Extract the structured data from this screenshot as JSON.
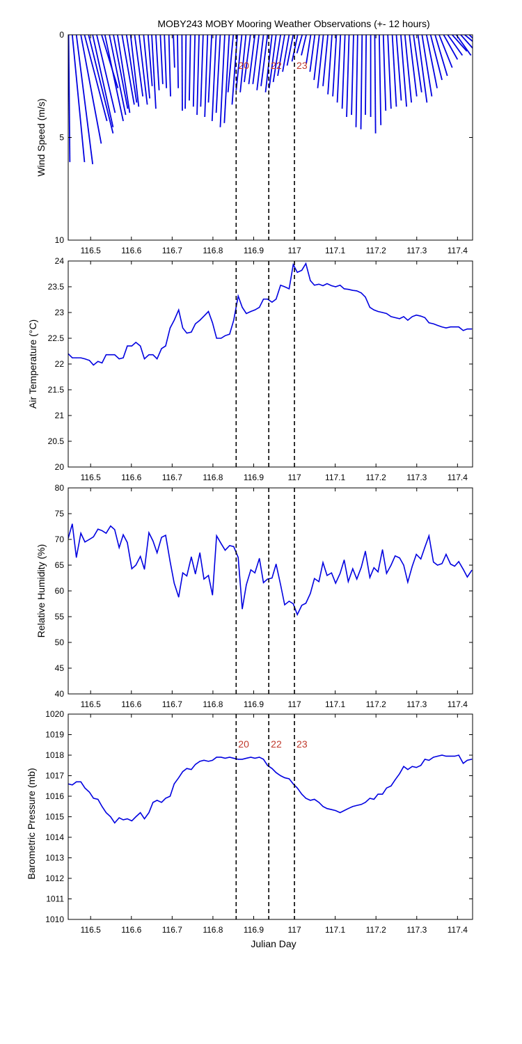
{
  "title": "MOBY243 MOBY Mooring Weather Observations (+- 12 hours)",
  "xlabel": "Julian Day",
  "line_color": "#0000e0",
  "marker_color": "#c0392b",
  "x_ticks": [
    "116.5",
    "116.6",
    "116.7",
    "116.8",
    "116.9",
    "117",
    "117.1",
    "117.2",
    "117.3",
    "117.4"
  ],
  "markers": [
    {
      "x": 116.857,
      "label": "20"
    },
    {
      "x": 116.937,
      "label": "22"
    },
    {
      "x": 117.0,
      "label": "23"
    }
  ],
  "chart_data": [
    {
      "type": "quiver",
      "ylabel": "Wind Speed (m/s)",
      "xlim": [
        116.445,
        117.437
      ],
      "ylim": [
        10,
        0
      ],
      "y_ticks": [
        "0",
        "5",
        "10"
      ],
      "show_marker_labels": true,
      "vectors": [
        {
          "x": 116.446,
          "u": 0.003,
          "speed": 6.2
        },
        {
          "x": 116.455,
          "u": 0.03,
          "speed": 6.2
        },
        {
          "x": 116.465,
          "u": 0.04,
          "speed": 6.3
        },
        {
          "x": 116.476,
          "u": 0.05,
          "speed": 5.3
        },
        {
          "x": 116.485,
          "u": 0.055,
          "speed": 4.2
        },
        {
          "x": 116.495,
          "u": 0.06,
          "speed": 4.8
        },
        {
          "x": 116.505,
          "u": 0.05,
          "speed": 4.5
        },
        {
          "x": 116.515,
          "u": 0.045,
          "speed": 3.8
        },
        {
          "x": 116.527,
          "u": 0.04,
          "speed": 2.6
        },
        {
          "x": 116.535,
          "u": 0.045,
          "speed": 4.2
        },
        {
          "x": 116.546,
          "u": 0.04,
          "speed": 3.9
        },
        {
          "x": 116.556,
          "u": 0.035,
          "speed": 3.6
        },
        {
          "x": 116.566,
          "u": 0.03,
          "speed": 3.8
        },
        {
          "x": 116.577,
          "u": 0.03,
          "speed": 3.4
        },
        {
          "x": 116.588,
          "u": 0.025,
          "speed": 3.3
        },
        {
          "x": 116.598,
          "u": 0.02,
          "speed": 3.5
        },
        {
          "x": 116.608,
          "u": 0.02,
          "speed": 3.0
        },
        {
          "x": 116.619,
          "u": 0.02,
          "speed": 3.4
        },
        {
          "x": 116.63,
          "u": 0.015,
          "speed": 3.1
        },
        {
          "x": 116.641,
          "u": 0.01,
          "speed": 2.5
        },
        {
          "x": 116.65,
          "u": 0.01,
          "speed": 3.6
        },
        {
          "x": 116.66,
          "u": 0.008,
          "speed": 2.7
        },
        {
          "x": 116.671,
          "u": 0.006,
          "speed": 2.4
        },
        {
          "x": 116.681,
          "u": 0.005,
          "speed": 2.6
        },
        {
          "x": 116.692,
          "u": 0.004,
          "speed": 3.0
        },
        {
          "x": 116.703,
          "u": 0.003,
          "speed": 1.6
        },
        {
          "x": 116.713,
          "u": 0.002,
          "speed": 2.6
        },
        {
          "x": 116.724,
          "u": 0.001,
          "speed": 3.7
        },
        {
          "x": 116.734,
          "u": -0.002,
          "speed": 3.6
        },
        {
          "x": 116.745,
          "u": -0.003,
          "speed": 3.2
        },
        {
          "x": 116.756,
          "u": -0.004,
          "speed": 3.5
        },
        {
          "x": 116.766,
          "u": -0.005,
          "speed": 3.9
        },
        {
          "x": 116.776,
          "u": -0.006,
          "speed": 3.5
        },
        {
          "x": 116.787,
          "u": -0.007,
          "speed": 4.0
        },
        {
          "x": 116.797,
          "u": -0.008,
          "speed": 3.3
        },
        {
          "x": 116.808,
          "u": -0.01,
          "speed": 4.2
        },
        {
          "x": 116.818,
          "u": -0.01,
          "speed": 3.8
        },
        {
          "x": 116.829,
          "u": -0.011,
          "speed": 4.5
        },
        {
          "x": 116.84,
          "u": -0.012,
          "speed": 4.3
        },
        {
          "x": 116.85,
          "u": -0.013,
          "speed": 2.8
        },
        {
          "x": 116.86,
          "u": -0.013,
          "speed": 3.4
        },
        {
          "x": 116.871,
          "u": -0.014,
          "speed": 2.7
        },
        {
          "x": 116.881,
          "u": -0.014,
          "speed": 2.8
        },
        {
          "x": 116.892,
          "u": -0.015,
          "speed": 2.3
        },
        {
          "x": 116.903,
          "u": -0.015,
          "speed": 2.4
        },
        {
          "x": 116.913,
          "u": -0.015,
          "speed": 2.4
        },
        {
          "x": 116.924,
          "u": -0.016,
          "speed": 2.7
        },
        {
          "x": 116.934,
          "u": -0.016,
          "speed": 2.5
        },
        {
          "x": 116.945,
          "u": -0.016,
          "speed": 2.8
        },
        {
          "x": 116.955,
          "u": -0.017,
          "speed": 2.6
        },
        {
          "x": 116.966,
          "u": -0.018,
          "speed": 2.3
        },
        {
          "x": 116.976,
          "u": -0.017,
          "speed": 2.0
        },
        {
          "x": 116.987,
          "u": -0.016,
          "speed": 1.8
        },
        {
          "x": 116.997,
          "u": -0.015,
          "speed": 1.5
        },
        {
          "x": 117.008,
          "u": -0.014,
          "speed": 1.3
        },
        {
          "x": 117.019,
          "u": -0.013,
          "speed": 0.9
        },
        {
          "x": 117.029,
          "u": -0.012,
          "speed": 1.0
        },
        {
          "x": 117.04,
          "u": -0.011,
          "speed": 1.4
        },
        {
          "x": 117.05,
          "u": -0.012,
          "speed": 1.8
        },
        {
          "x": 117.061,
          "u": -0.013,
          "speed": 2.2
        },
        {
          "x": 117.071,
          "u": -0.014,
          "speed": 2.6
        },
        {
          "x": 117.082,
          "u": -0.012,
          "speed": 2.5
        },
        {
          "x": 117.092,
          "u": -0.01,
          "speed": 2.9
        },
        {
          "x": 117.103,
          "u": -0.009,
          "speed": 3.0
        },
        {
          "x": 117.113,
          "u": -0.008,
          "speed": 3.3
        },
        {
          "x": 117.124,
          "u": -0.007,
          "speed": 3.6
        },
        {
          "x": 117.134,
          "u": -0.006,
          "speed": 4.0
        },
        {
          "x": 117.145,
          "u": -0.005,
          "speed": 3.9
        },
        {
          "x": 117.155,
          "u": -0.004,
          "speed": 4.5
        },
        {
          "x": 117.166,
          "u": -0.003,
          "speed": 4.6
        },
        {
          "x": 117.176,
          "u": -0.002,
          "speed": 3.9
        },
        {
          "x": 117.187,
          "u": 0.0,
          "speed": 4.0
        },
        {
          "x": 117.197,
          "u": 0.002,
          "speed": 4.8
        },
        {
          "x": 117.208,
          "u": 0.004,
          "speed": 4.4
        },
        {
          "x": 117.218,
          "u": 0.006,
          "speed": 3.7
        },
        {
          "x": 117.229,
          "u": 0.008,
          "speed": 3.6
        },
        {
          "x": 117.24,
          "u": 0.01,
          "speed": 3.5
        },
        {
          "x": 117.25,
          "u": 0.012,
          "speed": 3.2
        },
        {
          "x": 117.261,
          "u": 0.014,
          "speed": 3.5
        },
        {
          "x": 117.271,
          "u": 0.016,
          "speed": 3.3
        },
        {
          "x": 117.282,
          "u": 0.018,
          "speed": 3.0
        },
        {
          "x": 117.292,
          "u": 0.02,
          "speed": 2.8
        },
        {
          "x": 117.303,
          "u": 0.022,
          "speed": 3.3
        },
        {
          "x": 117.313,
          "u": 0.024,
          "speed": 3.0
        },
        {
          "x": 117.324,
          "u": 0.026,
          "speed": 2.6
        },
        {
          "x": 117.334,
          "u": 0.028,
          "speed": 2.2
        },
        {
          "x": 117.345,
          "u": 0.03,
          "speed": 2.0
        },
        {
          "x": 117.355,
          "u": 0.032,
          "speed": 1.6
        },
        {
          "x": 117.366,
          "u": 0.034,
          "speed": 1.2
        },
        {
          "x": 117.376,
          "u": 0.036,
          "speed": 1.0
        },
        {
          "x": 117.387,
          "u": 0.036,
          "speed": 0.8
        },
        {
          "x": 117.397,
          "u": 0.036,
          "speed": 1.0
        },
        {
          "x": 117.408,
          "u": 0.036,
          "speed": 0.8
        },
        {
          "x": 117.418,
          "u": 0.036,
          "speed": 0.6
        },
        {
          "x": 117.429,
          "u": 0.035,
          "speed": 0.7
        }
      ]
    },
    {
      "type": "line",
      "ylabel": "Air Temperature (°C)",
      "xlim": [
        116.445,
        117.437
      ],
      "ylim": [
        20,
        24
      ],
      "y_ticks": [
        "20",
        "20.5",
        "21",
        "21.5",
        "22",
        "22.5",
        "23",
        "23.5",
        "24"
      ],
      "show_marker_labels": false,
      "x": [
        116.445,
        116.455,
        116.465,
        116.476,
        116.486,
        116.497,
        116.507,
        116.518,
        116.528,
        116.538,
        116.549,
        116.559,
        116.57,
        116.58,
        116.59,
        116.601,
        116.611,
        116.622,
        116.632,
        116.643,
        116.653,
        116.663,
        116.674,
        116.684,
        116.695,
        116.705,
        116.716,
        116.726,
        116.736,
        116.747,
        116.757,
        116.768,
        116.778,
        116.789,
        116.799,
        116.809,
        116.82,
        116.83,
        116.841,
        116.851,
        116.862,
        116.872,
        116.882,
        116.893,
        116.903,
        116.914,
        116.924,
        116.934,
        116.945,
        116.955,
        116.966,
        116.976,
        116.987,
        116.997,
        117.007,
        117.018,
        117.028,
        117.039,
        117.049,
        117.06,
        117.07,
        117.08,
        117.091,
        117.101,
        117.112,
        117.122,
        117.132,
        117.143,
        117.153,
        117.164,
        117.174,
        117.185,
        117.195,
        117.205,
        117.216,
        117.226,
        117.237,
        117.247,
        117.258,
        117.268,
        117.278,
        117.289,
        117.299,
        117.31,
        117.32,
        117.33,
        117.341,
        117.351,
        117.362,
        117.372,
        117.383,
        117.393,
        117.403,
        117.414,
        117.424,
        117.435
      ],
      "values": [
        22.2,
        22.12,
        22.12,
        22.12,
        22.1,
        22.07,
        21.98,
        22.05,
        22.02,
        22.18,
        22.18,
        22.18,
        22.1,
        22.12,
        22.35,
        22.35,
        22.42,
        22.35,
        22.1,
        22.18,
        22.18,
        22.1,
        22.3,
        22.35,
        22.7,
        22.85,
        23.05,
        22.7,
        22.6,
        22.62,
        22.78,
        22.85,
        22.93,
        23.02,
        22.8,
        22.5,
        22.5,
        22.55,
        22.58,
        22.85,
        23.32,
        23.1,
        22.98,
        23.02,
        23.05,
        23.1,
        23.26,
        23.26,
        23.2,
        23.26,
        23.53,
        23.5,
        23.46,
        23.93,
        23.78,
        23.82,
        23.95,
        23.62,
        23.53,
        23.55,
        23.52,
        23.56,
        23.52,
        23.5,
        23.53,
        23.46,
        23.45,
        23.43,
        23.42,
        23.38,
        23.3,
        23.1,
        23.05,
        23.02,
        23.0,
        22.98,
        22.92,
        22.9,
        22.88,
        22.92,
        22.85,
        22.92,
        22.95,
        22.93,
        22.9,
        22.8,
        22.78,
        22.75,
        22.72,
        22.7,
        22.72,
        22.72,
        22.72,
        22.65,
        22.68,
        22.68
      ]
    },
    {
      "type": "line",
      "ylabel": "Relative Humidity (%)",
      "xlim": [
        116.445,
        117.437
      ],
      "ylim": [
        40,
        80
      ],
      "y_ticks": [
        "40",
        "45",
        "50",
        "55",
        "60",
        "65",
        "70",
        "75",
        "80"
      ],
      "show_marker_labels": false,
      "x": [
        116.445,
        116.455,
        116.465,
        116.476,
        116.486,
        116.497,
        116.507,
        116.518,
        116.528,
        116.538,
        116.549,
        116.559,
        116.57,
        116.58,
        116.59,
        116.601,
        116.611,
        116.622,
        116.632,
        116.643,
        116.653,
        116.663,
        116.674,
        116.684,
        116.695,
        116.705,
        116.716,
        116.726,
        116.736,
        116.747,
        116.757,
        116.768,
        116.778,
        116.789,
        116.799,
        116.809,
        116.82,
        116.83,
        116.841,
        116.851,
        116.862,
        116.872,
        116.882,
        116.893,
        116.903,
        116.914,
        116.924,
        116.934,
        116.945,
        116.955,
        116.966,
        116.976,
        116.987,
        116.997,
        117.007,
        117.018,
        117.028,
        117.039,
        117.049,
        117.06,
        117.07,
        117.08,
        117.091,
        117.101,
        117.112,
        117.122,
        117.132,
        117.143,
        117.153,
        117.164,
        117.174,
        117.185,
        117.195,
        117.205,
        117.216,
        117.226,
        117.237,
        117.247,
        117.258,
        117.268,
        117.278,
        117.289,
        117.299,
        117.31,
        117.32,
        117.33,
        117.341,
        117.351,
        117.362,
        117.372,
        117.383,
        117.393,
        117.403,
        117.414,
        117.424,
        117.435
      ],
      "values": [
        70.2,
        73.0,
        66.5,
        71.2,
        69.5,
        70.0,
        70.5,
        72.0,
        71.7,
        71.2,
        72.6,
        71.9,
        68.4,
        70.9,
        69.4,
        64.3,
        65.0,
        66.7,
        64.2,
        71.3,
        69.7,
        67.4,
        70.4,
        70.8,
        65.7,
        61.5,
        58.8,
        63.5,
        62.9,
        66.6,
        63.3,
        67.4,
        62.3,
        63.0,
        59.2,
        70.7,
        69.2,
        67.9,
        68.8,
        68.6,
        66.5,
        56.5,
        61.2,
        64.1,
        63.5,
        66.3,
        61.6,
        62.3,
        62.5,
        65.2,
        61.2,
        57.3,
        58.0,
        57.5,
        55.4,
        57.2,
        57.6,
        59.5,
        62.4,
        61.8,
        65.5,
        63.0,
        63.5,
        61.5,
        63.4,
        66.0,
        61.8,
        64.3,
        62.3,
        64.6,
        67.7,
        62.6,
        64.5,
        63.7,
        68.0,
        63.4,
        65.0,
        66.8,
        66.4,
        65.0,
        61.7,
        64.8,
        67.1,
        66.2,
        68.5,
        70.7,
        65.6,
        65.0,
        65.3,
        67.1,
        65.2,
        64.8,
        65.7,
        64.2,
        62.7,
        64.0
      ]
    },
    {
      "type": "line",
      "ylabel": "Barometric Pressure (mb)",
      "xlim": [
        116.445,
        117.437
      ],
      "ylim": [
        1010,
        1020
      ],
      "y_ticks": [
        "1010",
        "1011",
        "1012",
        "1013",
        "1014",
        "1015",
        "1016",
        "1017",
        "1018",
        "1019",
        "1020"
      ],
      "show_marker_labels": true,
      "x": [
        116.445,
        116.455,
        116.465,
        116.476,
        116.486,
        116.497,
        116.507,
        116.518,
        116.528,
        116.538,
        116.549,
        116.559,
        116.57,
        116.58,
        116.59,
        116.601,
        116.611,
        116.622,
        116.632,
        116.643,
        116.653,
        116.663,
        116.674,
        116.684,
        116.695,
        116.705,
        116.716,
        116.726,
        116.736,
        116.747,
        116.757,
        116.768,
        116.778,
        116.789,
        116.799,
        116.809,
        116.82,
        116.83,
        116.841,
        116.851,
        116.862,
        116.872,
        116.882,
        116.893,
        116.903,
        116.914,
        116.924,
        116.934,
        116.945,
        116.955,
        116.966,
        116.976,
        116.987,
        116.997,
        117.007,
        117.018,
        117.028,
        117.039,
        117.049,
        117.06,
        117.07,
        117.08,
        117.091,
        117.101,
        117.112,
        117.122,
        117.132,
        117.143,
        117.153,
        117.164,
        117.174,
        117.185,
        117.195,
        117.205,
        117.216,
        117.226,
        117.237,
        117.247,
        117.258,
        117.268,
        117.278,
        117.289,
        117.299,
        117.31,
        117.32,
        117.33,
        117.341,
        117.351,
        117.362,
        117.372,
        117.383,
        117.393,
        117.403,
        117.414,
        117.424,
        117.435
      ],
      "values": [
        1016.6,
        1016.55,
        1016.7,
        1016.7,
        1016.4,
        1016.2,
        1015.9,
        1015.85,
        1015.5,
        1015.2,
        1015.0,
        1014.7,
        1014.95,
        1014.85,
        1014.9,
        1014.8,
        1015.0,
        1015.2,
        1014.9,
        1015.2,
        1015.7,
        1015.8,
        1015.7,
        1015.9,
        1016.0,
        1016.6,
        1016.9,
        1017.2,
        1017.35,
        1017.3,
        1017.55,
        1017.7,
        1017.75,
        1017.7,
        1017.75,
        1017.9,
        1017.9,
        1017.85,
        1017.9,
        1017.85,
        1017.8,
        1017.8,
        1017.85,
        1017.9,
        1017.85,
        1017.9,
        1017.8,
        1017.5,
        1017.35,
        1017.15,
        1017.0,
        1016.9,
        1016.85,
        1016.6,
        1016.4,
        1016.1,
        1015.9,
        1015.8,
        1015.85,
        1015.7,
        1015.5,
        1015.4,
        1015.35,
        1015.3,
        1015.2,
        1015.3,
        1015.4,
        1015.5,
        1015.55,
        1015.6,
        1015.7,
        1015.9,
        1015.85,
        1016.1,
        1016.1,
        1016.4,
        1016.5,
        1016.8,
        1017.1,
        1017.45,
        1017.3,
        1017.45,
        1017.4,
        1017.5,
        1017.8,
        1017.75,
        1017.9,
        1017.95,
        1018.0,
        1017.95,
        1017.95,
        1017.95,
        1018.0,
        1017.6,
        1017.75,
        1017.8
      ]
    }
  ]
}
